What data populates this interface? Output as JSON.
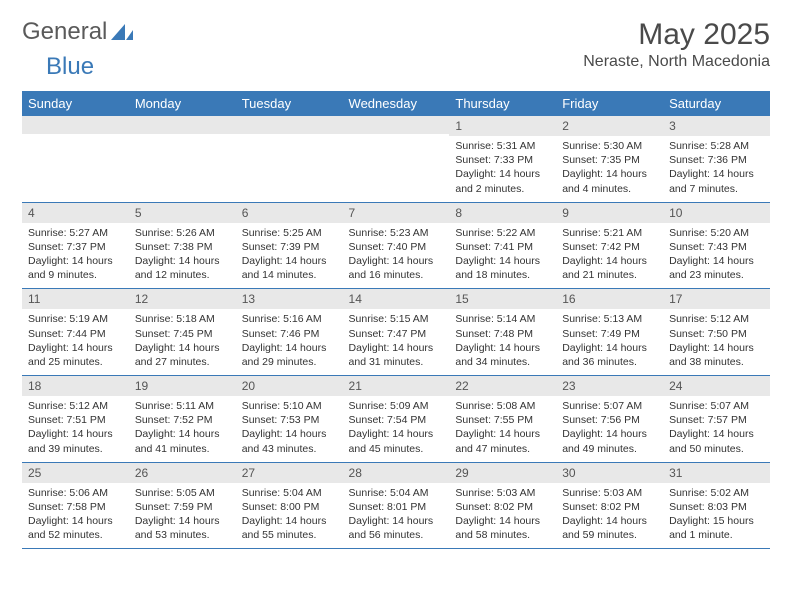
{
  "logo": {
    "text1": "General",
    "text2": "Blue"
  },
  "title": "May 2025",
  "location": "Neraste, North Macedonia",
  "colors": {
    "header_bg": "#3a79b7",
    "header_fg": "#ffffff",
    "daybar_bg": "#e8e8e8",
    "row_border": "#3a79b7",
    "text": "#333333",
    "logo_gray": "#5a5a5a",
    "logo_blue": "#3a79b7",
    "page_bg": "#ffffff"
  },
  "typography": {
    "title_fontsize": 30,
    "location_fontsize": 16,
    "weekday_fontsize": 13,
    "daynum_fontsize": 12,
    "body_fontsize": 10.5
  },
  "weekdays": [
    "Sunday",
    "Monday",
    "Tuesday",
    "Wednesday",
    "Thursday",
    "Friday",
    "Saturday"
  ],
  "weeks": [
    [
      {
        "num": "",
        "lines": [
          "",
          "",
          "",
          ""
        ]
      },
      {
        "num": "",
        "lines": [
          "",
          "",
          "",
          ""
        ]
      },
      {
        "num": "",
        "lines": [
          "",
          "",
          "",
          ""
        ]
      },
      {
        "num": "",
        "lines": [
          "",
          "",
          "",
          ""
        ]
      },
      {
        "num": "1",
        "lines": [
          "Sunrise: 5:31 AM",
          "Sunset: 7:33 PM",
          "Daylight: 14 hours",
          "and 2 minutes."
        ]
      },
      {
        "num": "2",
        "lines": [
          "Sunrise: 5:30 AM",
          "Sunset: 7:35 PM",
          "Daylight: 14 hours",
          "and 4 minutes."
        ]
      },
      {
        "num": "3",
        "lines": [
          "Sunrise: 5:28 AM",
          "Sunset: 7:36 PM",
          "Daylight: 14 hours",
          "and 7 minutes."
        ]
      }
    ],
    [
      {
        "num": "4",
        "lines": [
          "Sunrise: 5:27 AM",
          "Sunset: 7:37 PM",
          "Daylight: 14 hours",
          "and 9 minutes."
        ]
      },
      {
        "num": "5",
        "lines": [
          "Sunrise: 5:26 AM",
          "Sunset: 7:38 PM",
          "Daylight: 14 hours",
          "and 12 minutes."
        ]
      },
      {
        "num": "6",
        "lines": [
          "Sunrise: 5:25 AM",
          "Sunset: 7:39 PM",
          "Daylight: 14 hours",
          "and 14 minutes."
        ]
      },
      {
        "num": "7",
        "lines": [
          "Sunrise: 5:23 AM",
          "Sunset: 7:40 PM",
          "Daylight: 14 hours",
          "and 16 minutes."
        ]
      },
      {
        "num": "8",
        "lines": [
          "Sunrise: 5:22 AM",
          "Sunset: 7:41 PM",
          "Daylight: 14 hours",
          "and 18 minutes."
        ]
      },
      {
        "num": "9",
        "lines": [
          "Sunrise: 5:21 AM",
          "Sunset: 7:42 PM",
          "Daylight: 14 hours",
          "and 21 minutes."
        ]
      },
      {
        "num": "10",
        "lines": [
          "Sunrise: 5:20 AM",
          "Sunset: 7:43 PM",
          "Daylight: 14 hours",
          "and 23 minutes."
        ]
      }
    ],
    [
      {
        "num": "11",
        "lines": [
          "Sunrise: 5:19 AM",
          "Sunset: 7:44 PM",
          "Daylight: 14 hours",
          "and 25 minutes."
        ]
      },
      {
        "num": "12",
        "lines": [
          "Sunrise: 5:18 AM",
          "Sunset: 7:45 PM",
          "Daylight: 14 hours",
          "and 27 minutes."
        ]
      },
      {
        "num": "13",
        "lines": [
          "Sunrise: 5:16 AM",
          "Sunset: 7:46 PM",
          "Daylight: 14 hours",
          "and 29 minutes."
        ]
      },
      {
        "num": "14",
        "lines": [
          "Sunrise: 5:15 AM",
          "Sunset: 7:47 PM",
          "Daylight: 14 hours",
          "and 31 minutes."
        ]
      },
      {
        "num": "15",
        "lines": [
          "Sunrise: 5:14 AM",
          "Sunset: 7:48 PM",
          "Daylight: 14 hours",
          "and 34 minutes."
        ]
      },
      {
        "num": "16",
        "lines": [
          "Sunrise: 5:13 AM",
          "Sunset: 7:49 PM",
          "Daylight: 14 hours",
          "and 36 minutes."
        ]
      },
      {
        "num": "17",
        "lines": [
          "Sunrise: 5:12 AM",
          "Sunset: 7:50 PM",
          "Daylight: 14 hours",
          "and 38 minutes."
        ]
      }
    ],
    [
      {
        "num": "18",
        "lines": [
          "Sunrise: 5:12 AM",
          "Sunset: 7:51 PM",
          "Daylight: 14 hours",
          "and 39 minutes."
        ]
      },
      {
        "num": "19",
        "lines": [
          "Sunrise: 5:11 AM",
          "Sunset: 7:52 PM",
          "Daylight: 14 hours",
          "and 41 minutes."
        ]
      },
      {
        "num": "20",
        "lines": [
          "Sunrise: 5:10 AM",
          "Sunset: 7:53 PM",
          "Daylight: 14 hours",
          "and 43 minutes."
        ]
      },
      {
        "num": "21",
        "lines": [
          "Sunrise: 5:09 AM",
          "Sunset: 7:54 PM",
          "Daylight: 14 hours",
          "and 45 minutes."
        ]
      },
      {
        "num": "22",
        "lines": [
          "Sunrise: 5:08 AM",
          "Sunset: 7:55 PM",
          "Daylight: 14 hours",
          "and 47 minutes."
        ]
      },
      {
        "num": "23",
        "lines": [
          "Sunrise: 5:07 AM",
          "Sunset: 7:56 PM",
          "Daylight: 14 hours",
          "and 49 minutes."
        ]
      },
      {
        "num": "24",
        "lines": [
          "Sunrise: 5:07 AM",
          "Sunset: 7:57 PM",
          "Daylight: 14 hours",
          "and 50 minutes."
        ]
      }
    ],
    [
      {
        "num": "25",
        "lines": [
          "Sunrise: 5:06 AM",
          "Sunset: 7:58 PM",
          "Daylight: 14 hours",
          "and 52 minutes."
        ]
      },
      {
        "num": "26",
        "lines": [
          "Sunrise: 5:05 AM",
          "Sunset: 7:59 PM",
          "Daylight: 14 hours",
          "and 53 minutes."
        ]
      },
      {
        "num": "27",
        "lines": [
          "Sunrise: 5:04 AM",
          "Sunset: 8:00 PM",
          "Daylight: 14 hours",
          "and 55 minutes."
        ]
      },
      {
        "num": "28",
        "lines": [
          "Sunrise: 5:04 AM",
          "Sunset: 8:01 PM",
          "Daylight: 14 hours",
          "and 56 minutes."
        ]
      },
      {
        "num": "29",
        "lines": [
          "Sunrise: 5:03 AM",
          "Sunset: 8:02 PM",
          "Daylight: 14 hours",
          "and 58 minutes."
        ]
      },
      {
        "num": "30",
        "lines": [
          "Sunrise: 5:03 AM",
          "Sunset: 8:02 PM",
          "Daylight: 14 hours",
          "and 59 minutes."
        ]
      },
      {
        "num": "31",
        "lines": [
          "Sunrise: 5:02 AM",
          "Sunset: 8:03 PM",
          "Daylight: 15 hours",
          "and 1 minute."
        ]
      }
    ]
  ]
}
